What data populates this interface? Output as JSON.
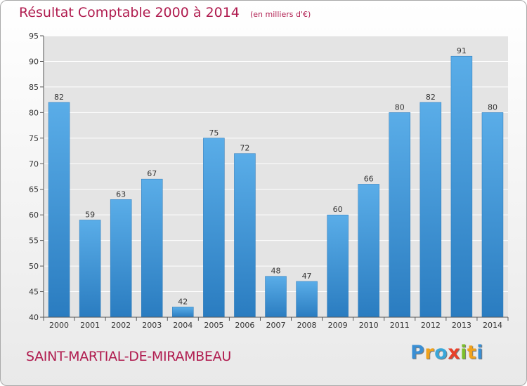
{
  "header": {
    "title": "Résultat Comptable 2000 à 2014",
    "subtitle": "(en milliers d'€)"
  },
  "footer": {
    "commune": "SAINT-MARTIAL-DE-MIRAMBEAU",
    "logo_letters": [
      {
        "char": "P",
        "color": "#3a8fd4"
      },
      {
        "char": "r",
        "color": "#f0a21c"
      },
      {
        "char": "o",
        "color": "#3aa7d9"
      },
      {
        "char": "x",
        "color": "#e8402a"
      },
      {
        "char": "i",
        "color": "#7cbf2a"
      },
      {
        "char": "t",
        "color": "#f0a21c"
      },
      {
        "char": "i",
        "color": "#3a8fd4"
      }
    ]
  },
  "chart_data": {
    "type": "bar",
    "categories": [
      "2000",
      "2001",
      "2002",
      "2003",
      "2004",
      "2005",
      "2006",
      "2007",
      "2008",
      "2009",
      "2010",
      "2011",
      "2012",
      "2013",
      "2014"
    ],
    "values": [
      82,
      59,
      63,
      67,
      42,
      75,
      72,
      48,
      47,
      60,
      66,
      80,
      82,
      91,
      80
    ],
    "title": "Résultat Comptable 2000 à 2014",
    "xlabel": "",
    "ylabel": "",
    "ylim": [
      40,
      95
    ],
    "yticks": [
      40,
      45,
      50,
      55,
      60,
      65,
      70,
      75,
      80,
      85,
      90,
      95
    ],
    "grid": true,
    "bar_color_top": "#5aade8",
    "bar_color_bottom": "#2a7cc0"
  }
}
